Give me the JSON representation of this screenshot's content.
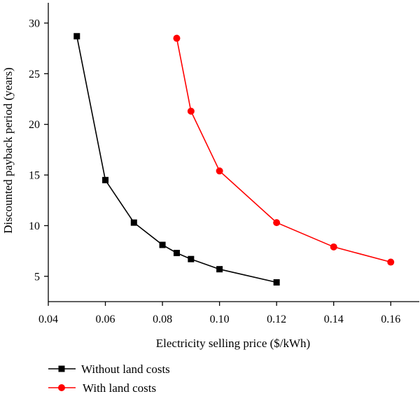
{
  "chart_data": {
    "type": "line",
    "title": "",
    "xlabel": "Electricity selling price ($/kWh)",
    "ylabel": "Discounted payback period (years)",
    "xlim": [
      0.04,
      0.17
    ],
    "ylim": [
      2.5,
      32
    ],
    "x_ticks": [
      0.04,
      0.06,
      0.08,
      0.1,
      0.12,
      0.14,
      0.16
    ],
    "x_tick_labels": [
      "0.04",
      "0.06",
      "0.08",
      "0.10",
      "0.12",
      "0.14",
      "0.16"
    ],
    "y_ticks": [
      5,
      10,
      15,
      20,
      25,
      30
    ],
    "y_tick_labels": [
      "5",
      "10",
      "15",
      "20",
      "25",
      "30"
    ],
    "grid": false,
    "legend_position": "bottom-left, below plot",
    "series": [
      {
        "name": "Without land costs",
        "color": "#000000",
        "marker": "square",
        "x": [
          0.05,
          0.06,
          0.07,
          0.08,
          0.085,
          0.09,
          0.1,
          0.12
        ],
        "y": [
          28.7,
          14.5,
          10.3,
          8.1,
          7.3,
          6.7,
          5.7,
          4.4
        ]
      },
      {
        "name": "With land costs",
        "color": "#ff0000",
        "marker": "circle",
        "x": [
          0.085,
          0.09,
          0.1,
          0.12,
          0.14,
          0.16
        ],
        "y": [
          28.5,
          21.3,
          15.4,
          10.3,
          7.9,
          6.4
        ]
      }
    ]
  }
}
